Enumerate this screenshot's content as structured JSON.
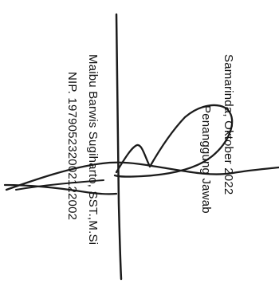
{
  "document": {
    "place_date": "Samarinda, Oktober 2022",
    "role": "Penanggung Jawab",
    "name": "Maibu Barwis Sugiharto, SST.,M.Si",
    "nip": "NIP. 197905232002122002"
  }
}
